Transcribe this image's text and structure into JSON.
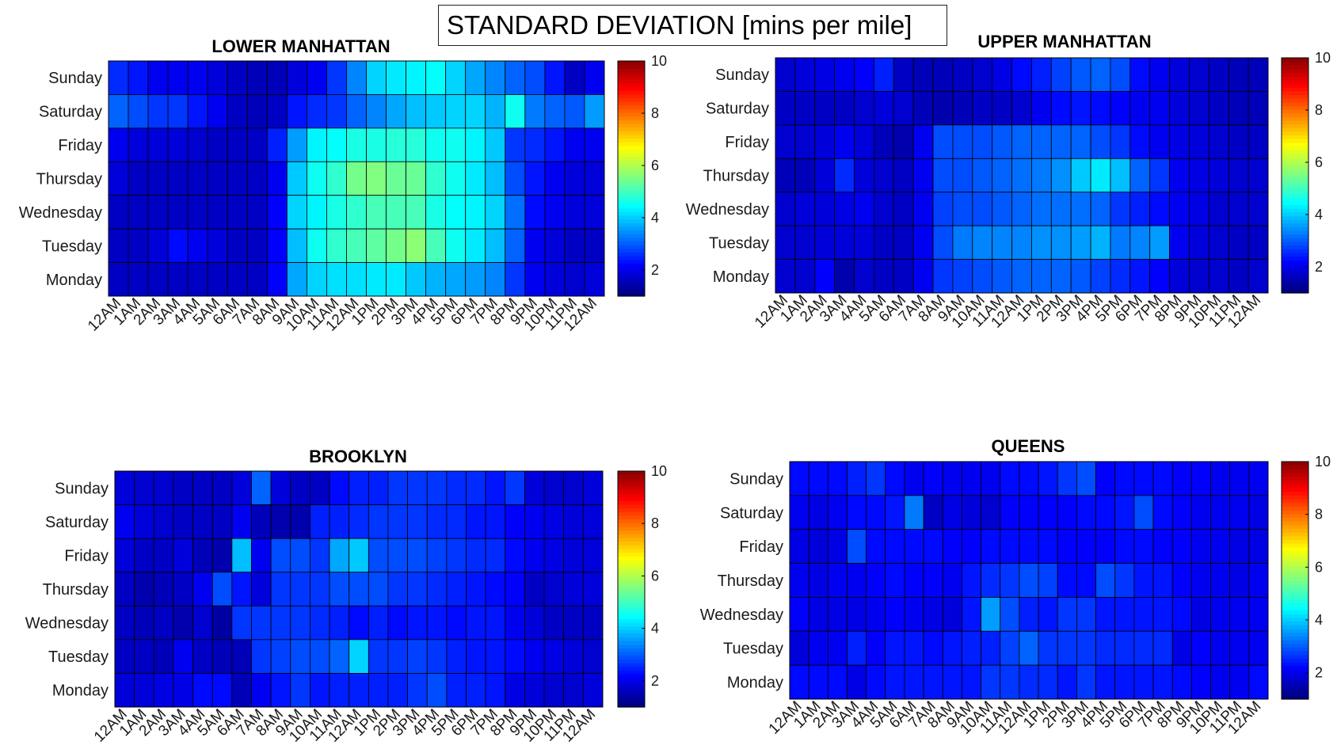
{
  "figure": {
    "title": "STANDARD DEVIATION [mins per mile]"
  },
  "chart_data": [
    {
      "type": "heatmap",
      "title": "LOWER MANHATTAN",
      "x_labels": [
        "12AM",
        "1AM",
        "2AM",
        "3AM",
        "4AM",
        "5AM",
        "6AM",
        "7AM",
        "8AM",
        "9AM",
        "10AM",
        "11AM",
        "12AM",
        "1PM",
        "2PM",
        "3PM",
        "4PM",
        "5PM",
        "6PM",
        "7PM",
        "8PM",
        "9PM",
        "10PM",
        "11PM",
        "12AM"
      ],
      "y_labels": [
        "Sunday",
        "Saturday",
        "Friday",
        "Thursday",
        "Wednesday",
        "Tuesday",
        "Monday"
      ],
      "colorbar": {
        "min": 1,
        "max": 10,
        "ticks": [
          2,
          4,
          6,
          8,
          10
        ],
        "colormap": "jet"
      },
      "values": [
        [
          2.5,
          2.3,
          2.0,
          2.0,
          2.0,
          1.8,
          1.6,
          1.5,
          1.5,
          1.8,
          2.0,
          2.6,
          3.3,
          4.0,
          4.2,
          4.3,
          4.4,
          4.0,
          3.6,
          3.3,
          3.0,
          2.8,
          2.3,
          1.6,
          2.0
        ],
        [
          3.0,
          2.8,
          2.6,
          2.6,
          2.3,
          2.0,
          1.6,
          1.5,
          1.6,
          2.3,
          2.5,
          2.6,
          3.0,
          3.3,
          3.6,
          3.8,
          3.9,
          4.0,
          4.0,
          3.7,
          4.5,
          3.2,
          3.0,
          2.9,
          3.5
        ],
        [
          2.0,
          1.8,
          1.8,
          1.8,
          1.7,
          1.6,
          1.6,
          1.6,
          2.4,
          3.5,
          4.3,
          4.4,
          4.6,
          4.6,
          4.7,
          4.7,
          4.5,
          4.5,
          4.3,
          3.9,
          2.6,
          2.5,
          2.3,
          2.0,
          2.0
        ],
        [
          1.8,
          1.6,
          1.6,
          1.6,
          1.6,
          1.6,
          1.6,
          1.6,
          2.0,
          3.9,
          4.5,
          4.8,
          5.4,
          5.5,
          5.3,
          5.3,
          4.8,
          4.5,
          4.2,
          3.8,
          2.8,
          2.3,
          2.0,
          1.8,
          1.8
        ],
        [
          1.6,
          1.6,
          1.6,
          1.6,
          1.6,
          1.6,
          1.6,
          1.6,
          2.1,
          4.0,
          4.3,
          4.6,
          4.8,
          5.0,
          5.0,
          5.0,
          4.6,
          4.4,
          4.3,
          4.0,
          3.1,
          2.2,
          2.0,
          1.8,
          1.8
        ],
        [
          1.6,
          1.6,
          1.8,
          2.2,
          2.0,
          1.8,
          1.6,
          1.6,
          2.1,
          3.8,
          4.5,
          4.8,
          5.0,
          5.2,
          5.4,
          5.6,
          5.0,
          4.5,
          4.2,
          3.8,
          3.0,
          2.0,
          1.8,
          1.6,
          1.6
        ],
        [
          1.6,
          1.6,
          1.6,
          1.6,
          1.6,
          1.6,
          1.6,
          1.6,
          2.1,
          3.6,
          4.0,
          4.1,
          4.1,
          4.2,
          4.2,
          3.9,
          3.7,
          3.6,
          3.5,
          3.3,
          2.6,
          2.0,
          1.8,
          1.7,
          1.8
        ]
      ]
    },
    {
      "type": "heatmap",
      "title": "UPPER MANHATTAN",
      "x_labels": [
        "12AM",
        "1AM",
        "2AM",
        "3AM",
        "4AM",
        "5AM",
        "6AM",
        "7AM",
        "8AM",
        "9AM",
        "10AM",
        "11AM",
        "12AM",
        "1PM",
        "2PM",
        "3PM",
        "4PM",
        "5PM",
        "6PM",
        "7PM",
        "8PM",
        "9PM",
        "10PM",
        "11PM",
        "12AM"
      ],
      "y_labels": [
        "Sunday",
        "Saturday",
        "Friday",
        "Thursday",
        "Wednesday",
        "Tuesday",
        "Monday"
      ],
      "colorbar": {
        "min": 1,
        "max": 10,
        "ticks": [
          2,
          4,
          6,
          8,
          10
        ],
        "colormap": "jet"
      },
      "values": [
        [
          1.7,
          1.8,
          1.9,
          2.0,
          2.1,
          2.4,
          1.6,
          1.5,
          1.5,
          1.6,
          1.7,
          1.9,
          2.2,
          2.4,
          2.7,
          2.9,
          3.0,
          2.8,
          2.2,
          2.0,
          1.8,
          1.7,
          1.6,
          1.5,
          1.5
        ],
        [
          1.6,
          1.6,
          1.6,
          1.6,
          1.7,
          1.8,
          1.7,
          1.5,
          1.4,
          1.5,
          1.6,
          1.6,
          1.7,
          2.0,
          2.2,
          2.3,
          2.2,
          2.1,
          2.0,
          2.0,
          1.8,
          1.7,
          1.6,
          1.5,
          1.5
        ],
        [
          1.7,
          1.7,
          1.8,
          2.0,
          1.8,
          1.5,
          1.4,
          2.0,
          2.8,
          2.8,
          2.8,
          2.9,
          3.0,
          3.0,
          3.0,
          3.0,
          2.8,
          2.6,
          2.2,
          2.0,
          1.9,
          1.8,
          1.7,
          1.6,
          1.6
        ],
        [
          1.5,
          1.5,
          1.8,
          2.5,
          1.8,
          1.7,
          1.6,
          2.0,
          2.8,
          2.8,
          2.9,
          3.0,
          3.1,
          3.2,
          3.4,
          3.9,
          4.2,
          3.8,
          3.0,
          2.6,
          2.0,
          1.9,
          1.8,
          1.7,
          1.7
        ],
        [
          1.7,
          1.8,
          1.8,
          1.9,
          2.0,
          1.7,
          1.6,
          2.0,
          2.7,
          2.8,
          2.8,
          2.9,
          3.0,
          3.1,
          3.1,
          3.1,
          3.0,
          2.6,
          2.4,
          2.2,
          2.0,
          1.9,
          1.7,
          1.7,
          1.7
        ],
        [
          1.7,
          1.7,
          1.8,
          1.8,
          1.8,
          1.6,
          1.6,
          2.0,
          2.8,
          3.2,
          3.3,
          3.3,
          3.3,
          3.4,
          3.4,
          3.5,
          3.7,
          3.2,
          3.3,
          3.5,
          2.0,
          1.8,
          1.7,
          1.6,
          1.6
        ],
        [
          1.7,
          1.7,
          2.1,
          1.4,
          1.7,
          1.6,
          1.6,
          2.0,
          2.6,
          2.7,
          2.8,
          2.9,
          3.0,
          3.0,
          3.0,
          2.9,
          2.7,
          2.5,
          2.3,
          2.1,
          1.8,
          1.7,
          1.7,
          1.6,
          1.7
        ]
      ]
    },
    {
      "type": "heatmap",
      "title": "BROOKLYN",
      "x_labels": [
        "12AM",
        "1AM",
        "2AM",
        "3AM",
        "4AM",
        "5AM",
        "6AM",
        "7AM",
        "8AM",
        "9AM",
        "10AM",
        "11AM",
        "12AM",
        "1PM",
        "2PM",
        "3PM",
        "4PM",
        "5PM",
        "6PM",
        "7PM",
        "8PM",
        "9PM",
        "10PM",
        "11PM",
        "12AM"
      ],
      "y_labels": [
        "Sunday",
        "Saturday",
        "Friday",
        "Thursday",
        "Wednesday",
        "Tuesday",
        "Monday"
      ],
      "colorbar": {
        "min": 1,
        "max": 10,
        "ticks": [
          2,
          4,
          6,
          8,
          10
        ],
        "colormap": "jet"
      },
      "values": [
        [
          1.8,
          1.7,
          1.7,
          1.6,
          1.6,
          1.6,
          1.8,
          3.0,
          1.8,
          1.6,
          1.6,
          2.2,
          2.4,
          2.4,
          2.6,
          2.6,
          2.6,
          2.5,
          2.5,
          2.3,
          2.6,
          1.8,
          1.7,
          1.7,
          1.8
        ],
        [
          2.0,
          1.8,
          1.7,
          1.6,
          1.6,
          1.6,
          2.0,
          1.5,
          1.4,
          1.4,
          2.4,
          2.4,
          2.5,
          2.6,
          2.6,
          2.6,
          2.5,
          2.5,
          2.3,
          2.3,
          2.1,
          2.0,
          1.9,
          1.8,
          1.8
        ],
        [
          1.8,
          1.6,
          1.6,
          1.8,
          1.5,
          1.4,
          3.8,
          2.0,
          2.8,
          2.8,
          2.6,
          3.6,
          3.9,
          2.8,
          2.8,
          2.8,
          2.7,
          2.6,
          2.5,
          2.5,
          2.2,
          2.0,
          1.9,
          1.8,
          1.8
        ],
        [
          1.6,
          1.4,
          1.5,
          1.6,
          2.0,
          2.8,
          2.3,
          1.8,
          2.6,
          2.6,
          2.6,
          2.8,
          2.8,
          2.8,
          2.6,
          2.6,
          2.5,
          2.4,
          2.3,
          2.2,
          2.1,
          1.6,
          1.7,
          1.8,
          1.8
        ],
        [
          1.6,
          1.5,
          1.6,
          1.4,
          1.7,
          1.3,
          2.6,
          2.6,
          2.6,
          2.6,
          2.5,
          2.4,
          2.2,
          2.4,
          2.2,
          2.3,
          2.3,
          2.2,
          2.3,
          2.3,
          2.0,
          1.8,
          1.6,
          1.6,
          1.6
        ],
        [
          1.6,
          1.6,
          1.5,
          2.0,
          1.6,
          1.5,
          1.5,
          2.6,
          2.7,
          2.8,
          2.8,
          3.0,
          4.0,
          2.6,
          2.6,
          2.7,
          2.6,
          2.4,
          2.3,
          2.3,
          2.2,
          2.0,
          1.9,
          1.8,
          1.7
        ],
        [
          1.8,
          1.8,
          1.9,
          1.9,
          2.2,
          2.2,
          1.5,
          2.0,
          2.3,
          2.6,
          2.3,
          2.4,
          2.4,
          2.4,
          2.4,
          2.6,
          2.8,
          2.4,
          2.4,
          2.3,
          1.9,
          1.8,
          1.7,
          1.7,
          1.8
        ]
      ]
    },
    {
      "type": "heatmap",
      "title": "QUEENS",
      "x_labels": [
        "12AM",
        "1AM",
        "2AM",
        "3AM",
        "4AM",
        "5AM",
        "6AM",
        "7AM",
        "8AM",
        "9AM",
        "10AM",
        "11AM",
        "12AM",
        "1PM",
        "2PM",
        "3PM",
        "4PM",
        "5PM",
        "6PM",
        "7PM",
        "8PM",
        "9PM",
        "10PM",
        "11PM",
        "12AM"
      ],
      "y_labels": [
        "Sunday",
        "Saturday",
        "Friday",
        "Thursday",
        "Wednesday",
        "Tuesday",
        "Monday"
      ],
      "colorbar": {
        "min": 1,
        "max": 10,
        "ticks": [
          2,
          4,
          6,
          8,
          10
        ],
        "colormap": "jet"
      },
      "values": [
        [
          2.2,
          2.2,
          2.2,
          2.4,
          2.6,
          2.2,
          2.0,
          2.1,
          2.0,
          2.0,
          2.0,
          2.2,
          2.2,
          2.3,
          2.6,
          2.8,
          2.1,
          2.2,
          2.2,
          2.2,
          2.1,
          2.1,
          2.0,
          2.0,
          2.0
        ],
        [
          2.0,
          1.9,
          2.0,
          2.2,
          2.2,
          2.3,
          3.2,
          1.6,
          1.9,
          1.8,
          1.7,
          2.1,
          2.1,
          2.1,
          2.1,
          2.2,
          2.2,
          2.3,
          2.8,
          2.2,
          2.1,
          2.0,
          2.0,
          2.0,
          1.9
        ],
        [
          1.9,
          1.8,
          1.9,
          2.8,
          2.2,
          2.2,
          2.2,
          2.2,
          2.1,
          2.1,
          2.2,
          2.2,
          2.2,
          2.2,
          2.1,
          2.1,
          2.1,
          2.2,
          2.2,
          2.1,
          2.1,
          2.0,
          2.0,
          1.9,
          1.9
        ],
        [
          2.0,
          1.9,
          2.0,
          2.0,
          2.1,
          2.2,
          2.1,
          2.1,
          2.0,
          2.3,
          2.5,
          2.6,
          2.8,
          2.7,
          2.2,
          2.2,
          2.8,
          2.6,
          2.3,
          2.3,
          2.1,
          2.0,
          2.0,
          1.9,
          2.0
        ],
        [
          2.1,
          1.9,
          1.9,
          1.9,
          2.0,
          2.1,
          2.0,
          1.9,
          1.8,
          2.3,
          3.5,
          2.8,
          2.4,
          2.3,
          2.6,
          2.6,
          2.3,
          2.3,
          2.3,
          2.3,
          2.2,
          1.9,
          2.0,
          2.0,
          2.0
        ],
        [
          1.8,
          2.0,
          2.0,
          2.4,
          2.1,
          2.3,
          2.3,
          2.2,
          2.3,
          2.4,
          2.4,
          2.7,
          3.0,
          2.6,
          2.6,
          2.6,
          2.5,
          2.5,
          2.5,
          2.5,
          1.9,
          2.1,
          2.0,
          2.0,
          2.0
        ],
        [
          2.2,
          2.2,
          2.2,
          1.9,
          2.2,
          2.3,
          2.3,
          2.3,
          2.3,
          2.3,
          2.6,
          2.6,
          2.5,
          2.5,
          2.3,
          2.6,
          2.3,
          2.3,
          2.3,
          2.3,
          2.2,
          2.1,
          2.0,
          2.0,
          2.2
        ]
      ]
    }
  ]
}
